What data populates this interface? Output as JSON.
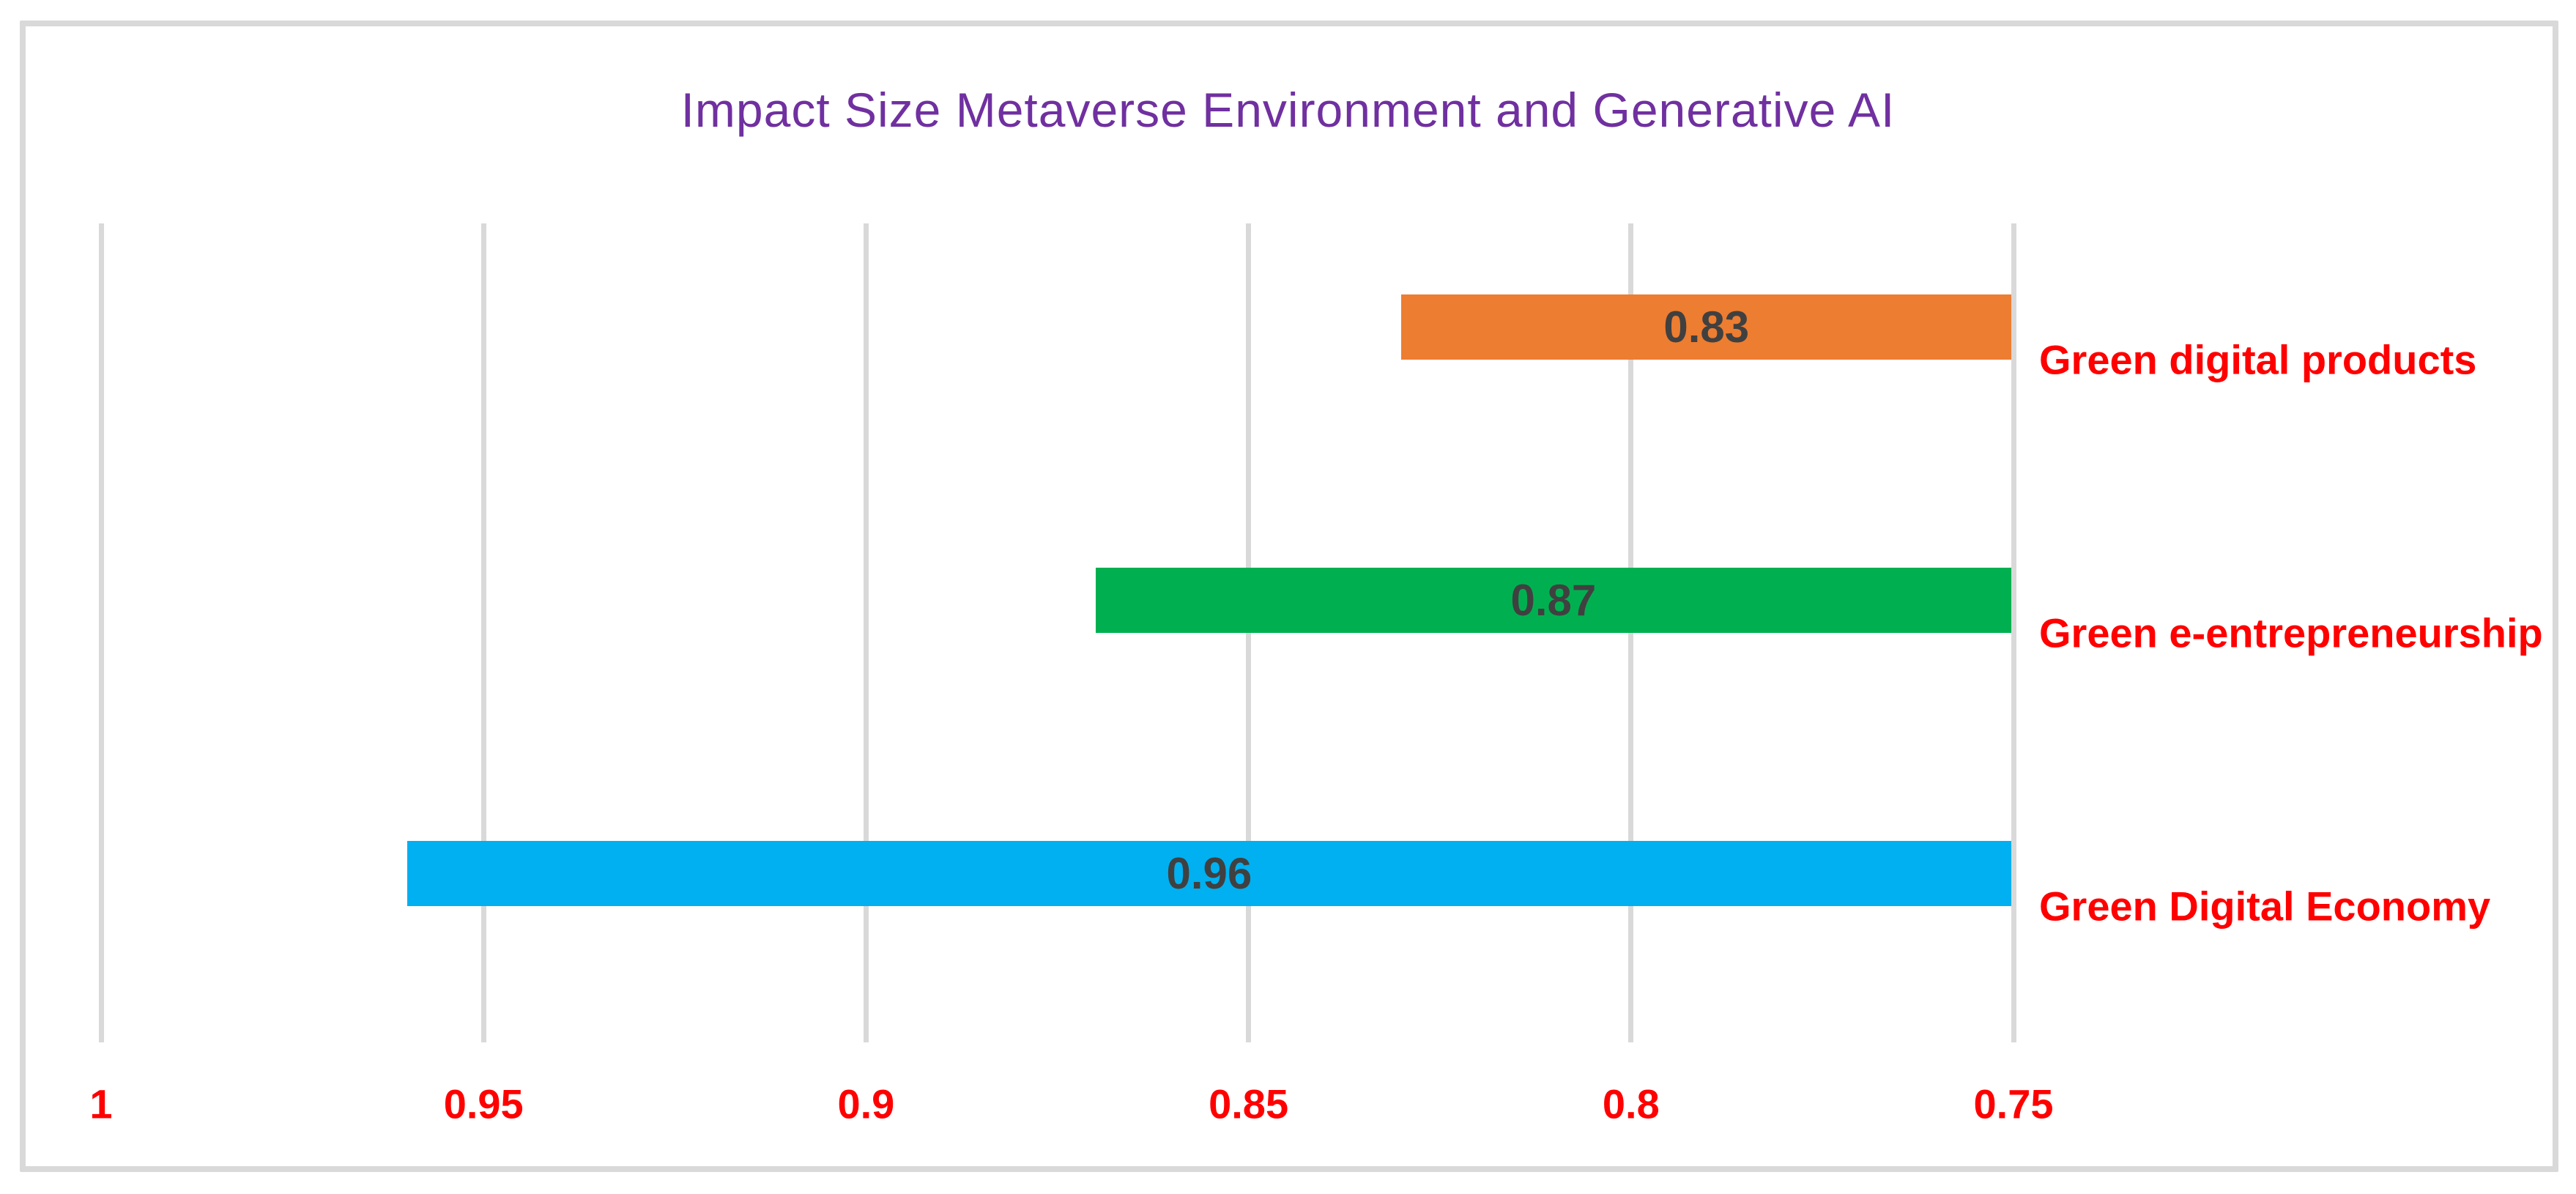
{
  "figure": {
    "title": "Impact Size Metaverse Environment and Generative AI",
    "title_color": "#7030A0",
    "background_color": "#FFFFFF",
    "border_color": "#D9D9D9"
  },
  "chart_data": {
    "type": "bar",
    "orientation": "horizontal",
    "title": "Impact Size Metaverse Environment and Generative AI",
    "categories": [
      "Green digital products",
      "Green e-entrepreneurship",
      "Green Digital Economy"
    ],
    "values": [
      0.83,
      0.87,
      0.96
    ],
    "value_labels": [
      "0.83",
      "0.87",
      "0.96"
    ],
    "bar_colors": [
      "#ED7D31",
      "#00B050",
      "#00B0F0"
    ],
    "bars_anchored_at": 0.75,
    "xlabel": "",
    "ylabel": "",
    "x_axis": {
      "min": 0.75,
      "max": 1,
      "reversed": true,
      "tick_labels": [
        "1",
        "0.95",
        "0.9",
        "0.85",
        "0.8",
        "0.75"
      ],
      "tick_values": [
        1,
        0.95,
        0.9,
        0.85,
        0.8,
        0.75
      ],
      "tick_color": "#FF0000"
    },
    "grid": true,
    "gridline_color": "#D9D9D9",
    "legend_position": "none",
    "category_label_color": "#FF0000",
    "value_label_color": "#404040"
  }
}
